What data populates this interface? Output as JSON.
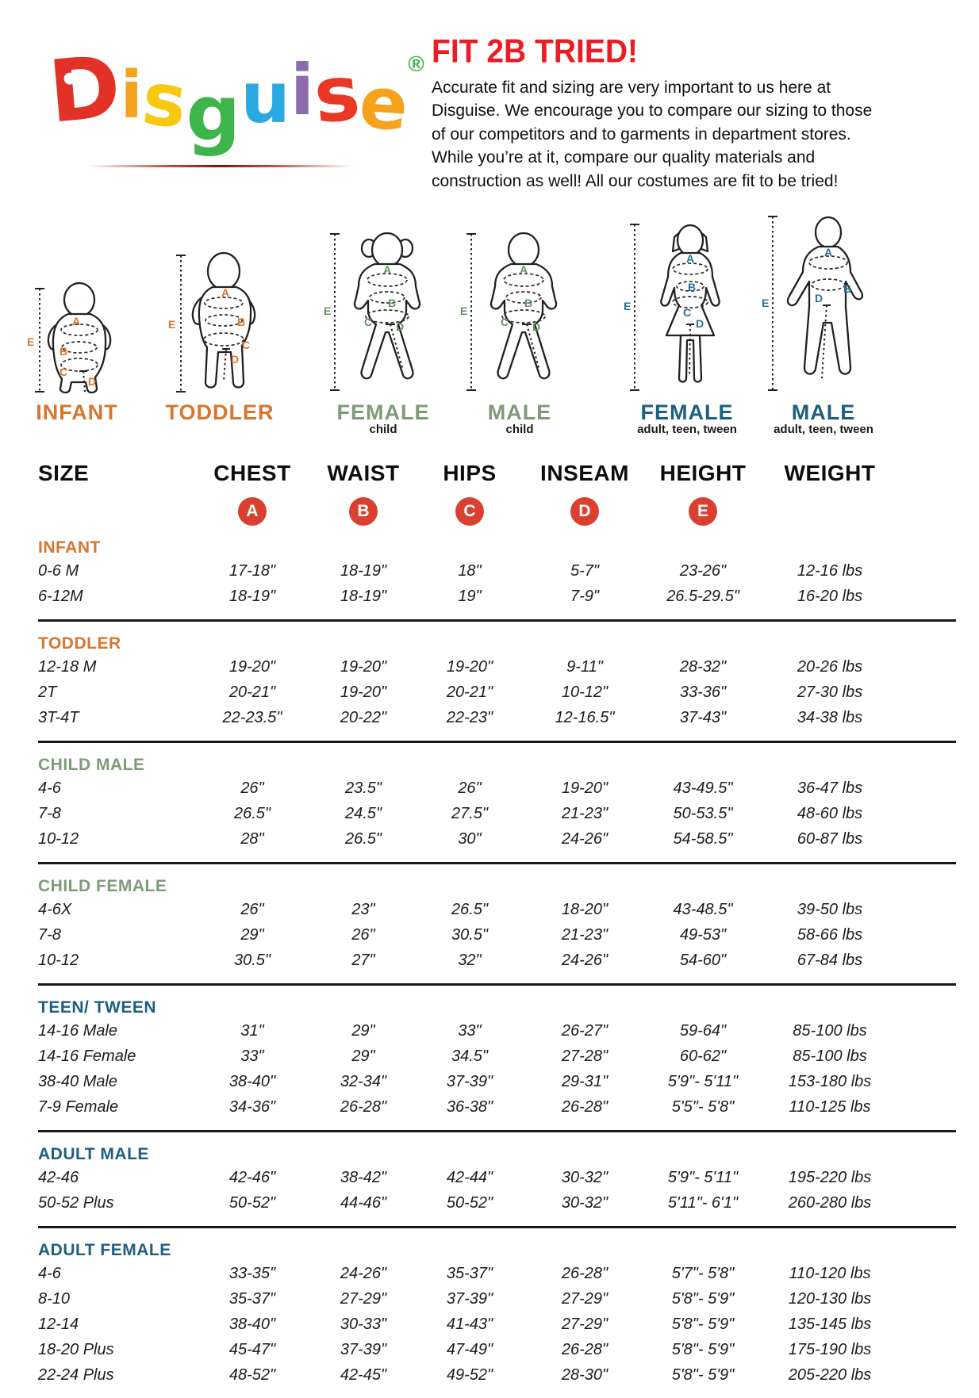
{
  "logo": {
    "letters": [
      {
        "ch": "D",
        "color": "#e23126"
      },
      {
        "ch": "i",
        "color": "#f6a21d"
      },
      {
        "ch": "s",
        "color": "#f8c70f"
      },
      {
        "ch": "g",
        "color": "#3eb54b"
      },
      {
        "ch": "u",
        "color": "#2ba8e0"
      },
      {
        "ch": "i",
        "color": "#8d6cae"
      },
      {
        "ch": "s",
        "color": "#e93825"
      },
      {
        "ch": "e",
        "color": "#f6a21d"
      }
    ],
    "registered": "®",
    "registered_color": "#3eb54b"
  },
  "intro": {
    "title": "FIT 2B TRIED!",
    "title_color": "#ec1c24",
    "body": "Accurate fit and sizing are very important to us here at Disguise. We encourage you to compare our sizing to those of our competitors and to garments in department stores. While you’re at it, compare our quality materials and construction as well! All our costumes are fit to be tried!"
  },
  "figures": {
    "letters": [
      "A",
      "B",
      "C",
      "D",
      "E"
    ],
    "colors": {
      "infant": "#d8752f",
      "child": "#649264",
      "adult": "#2e6e93"
    },
    "items": [
      {
        "label": "INFANT",
        "sub": "",
        "color": "#d8752f"
      },
      {
        "label": "TODDLER",
        "sub": "",
        "color": "#d8752f"
      },
      {
        "label": "FEMALE",
        "sub": "child",
        "color": "#7e9b77"
      },
      {
        "label": "MALE",
        "sub": "child",
        "color": "#7e9b77"
      },
      {
        "label": "FEMALE",
        "sub": "adult, teen, tween",
        "color": "#1e5f7f"
      },
      {
        "label": "MALE",
        "sub": "adult, teen, tween",
        "color": "#1e5f7f"
      }
    ]
  },
  "table": {
    "columns": [
      "SIZE",
      "CHEST",
      "WAIST",
      "HIPS",
      "INSEAM",
      "HEIGHT",
      "WEIGHT"
    ],
    "badges": [
      "A",
      "B",
      "C",
      "D",
      "E"
    ],
    "badge_color": "#d9402f",
    "sections": [
      {
        "name": "INFANT",
        "color": "#d8752f",
        "rows": [
          {
            "size": "0-6 M",
            "chest": "17-18\"",
            "waist": "18-19\"",
            "hips": "18\"",
            "inseam": "5-7\"",
            "height": "23-26\"",
            "weight": "12-16 lbs"
          },
          {
            "size": "6-12M",
            "chest": "18-19\"",
            "waist": "18-19\"",
            "hips": "19\"",
            "inseam": "7-9\"",
            "height": "26.5-29.5\"",
            "weight": "16-20 lbs"
          }
        ]
      },
      {
        "name": "TODDLER",
        "color": "#d8752f",
        "rows": [
          {
            "size": "12-18 M",
            "chest": "19-20\"",
            "waist": "19-20\"",
            "hips": "19-20\"",
            "inseam": "9-11\"",
            "height": "28-32\"",
            "weight": "20-26 lbs"
          },
          {
            "size": "2T",
            "chest": "20-21\"",
            "waist": "19-20\"",
            "hips": "20-21\"",
            "inseam": "10-12\"",
            "height": "33-36\"",
            "weight": "27-30 lbs"
          },
          {
            "size": "3T-4T",
            "chest": "22-23.5\"",
            "waist": "20-22\"",
            "hips": "22-23\"",
            "inseam": "12-16.5\"",
            "height": "37-43\"",
            "weight": "34-38 lbs"
          }
        ]
      },
      {
        "name": "CHILD MALE",
        "color": "#7e9b77",
        "rows": [
          {
            "size": "4-6",
            "chest": "26\"",
            "waist": "23.5\"",
            "hips": "26\"",
            "inseam": "19-20\"",
            "height": "43-49.5\"",
            "weight": "36-47 lbs"
          },
          {
            "size": "7-8",
            "chest": "26.5\"",
            "waist": "24.5\"",
            "hips": "27.5\"",
            "inseam": "21-23\"",
            "height": "50-53.5\"",
            "weight": "48-60 lbs"
          },
          {
            "size": "10-12",
            "chest": "28\"",
            "waist": "26.5\"",
            "hips": "30\"",
            "inseam": "24-26\"",
            "height": "54-58.5\"",
            "weight": "60-87 lbs"
          }
        ]
      },
      {
        "name": "CHILD FEMALE",
        "color": "#7e9b77",
        "rows": [
          {
            "size": "4-6X",
            "chest": "26\"",
            "waist": "23\"",
            "hips": "26.5\"",
            "inseam": "18-20\"",
            "height": "43-48.5\"",
            "weight": "39-50 lbs"
          },
          {
            "size": "7-8",
            "chest": "29\"",
            "waist": "26\"",
            "hips": "30.5\"",
            "inseam": "21-23\"",
            "height": "49-53\"",
            "weight": "58-66 lbs"
          },
          {
            "size": "10-12",
            "chest": "30.5\"",
            "waist": "27\"",
            "hips": "32\"",
            "inseam": "24-26\"",
            "height": "54-60\"",
            "weight": "67-84 lbs"
          }
        ]
      },
      {
        "name": "TEEN/ TWEEN",
        "color": "#1e5f7f",
        "rows": [
          {
            "size": "14-16 Male",
            "chest": "31\"",
            "waist": "29\"",
            "hips": "33\"",
            "inseam": "26-27\"",
            "height": "59-64\"",
            "weight": "85-100 lbs"
          },
          {
            "size": "14-16 Female",
            "chest": "33\"",
            "waist": "29\"",
            "hips": "34.5\"",
            "inseam": "27-28\"",
            "height": "60-62\"",
            "weight": "85-100 lbs"
          },
          {
            "size": "38-40 Male",
            "chest": "38-40\"",
            "waist": "32-34\"",
            "hips": "37-39\"",
            "inseam": "29-31\"",
            "height": "5'9\"- 5'11\"",
            "weight": "153-180 lbs"
          },
          {
            "size": "7-9 Female",
            "chest": "34-36\"",
            "waist": "26-28\"",
            "hips": "36-38\"",
            "inseam": "26-28\"",
            "height": "5'5\"- 5'8\"",
            "weight": "110-125 lbs"
          }
        ]
      },
      {
        "name": "ADULT MALE",
        "color": "#1e5f7f",
        "rows": [
          {
            "size": "42-46",
            "chest": "42-46\"",
            "waist": "38-42\"",
            "hips": "42-44\"",
            "inseam": "30-32\"",
            "height": "5'9\"- 5'11\"",
            "weight": "195-220 lbs"
          },
          {
            "size": "50-52 Plus",
            "chest": "50-52\"",
            "waist": "44-46\"",
            "hips": "50-52\"",
            "inseam": "30-32\"",
            "height": "5'11\"- 6'1\"",
            "weight": "260-280 lbs"
          }
        ]
      },
      {
        "name": "ADULT FEMALE",
        "color": "#1e5f7f",
        "rows": [
          {
            "size": "4-6",
            "chest": "33-35\"",
            "waist": "24-26\"",
            "hips": "35-37\"",
            "inseam": "26-28\"",
            "height": "5'7\"- 5'8\"",
            "weight": "110-120 lbs"
          },
          {
            "size": "8-10",
            "chest": "35-37\"",
            "waist": "27-29\"",
            "hips": "37-39\"",
            "inseam": "27-29\"",
            "height": "5'8\"- 5'9\"",
            "weight": "120-130 lbs"
          },
          {
            "size": "12-14",
            "chest": "38-40\"",
            "waist": "30-33\"",
            "hips": "41-43\"",
            "inseam": "27-29\"",
            "height": "5'8\"- 5'9\"",
            "weight": "135-145 lbs"
          },
          {
            "size": "18-20 Plus",
            "chest": "45-47\"",
            "waist": "37-39\"",
            "hips": "47-49\"",
            "inseam": "26-28\"",
            "height": "5'8\"- 5'9\"",
            "weight": "175-190 lbs"
          },
          {
            "size": "22-24 Plus",
            "chest": "48-52\"",
            "waist": "42-45\"",
            "hips": "49-52\"",
            "inseam": "28-30\"",
            "height": "5'8\"- 5'9\"",
            "weight": "205-220 lbs"
          }
        ]
      }
    ]
  }
}
